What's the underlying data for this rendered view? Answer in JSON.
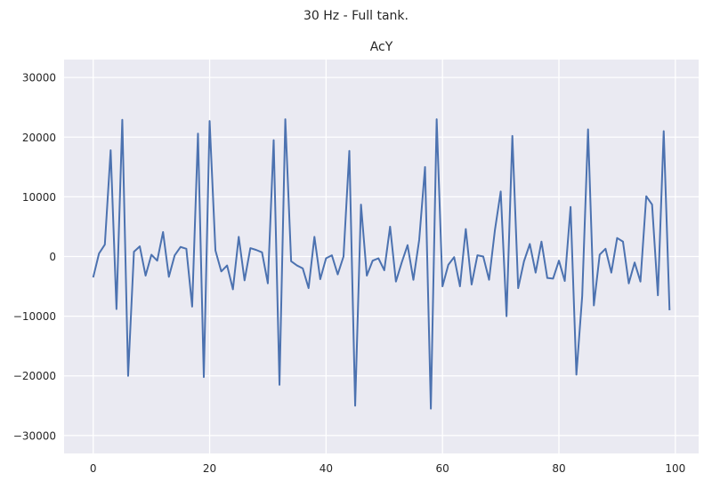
{
  "figure": {
    "suptitle": "30 Hz - Full tank."
  },
  "chart_data": {
    "type": "line",
    "title": "AcY",
    "xlabel": "",
    "ylabel": "",
    "xlim": [
      -5,
      104
    ],
    "ylim": [
      -33000,
      33000
    ],
    "xticks": [
      0,
      20,
      40,
      60,
      80,
      100
    ],
    "yticks": [
      -30000,
      -20000,
      -10000,
      0,
      10000,
      20000,
      30000
    ],
    "xtick_labels": [
      "0",
      "20",
      "40",
      "60",
      "80",
      "100"
    ],
    "ytick_labels": [
      "−30000",
      "−20000",
      "−10000",
      "0",
      "10000",
      "20000",
      "30000"
    ],
    "grid": true,
    "colors": {
      "background": "#eaeaf2",
      "grid": "#ffffff",
      "line": "#4c72b0"
    },
    "series": [
      {
        "name": "AcY",
        "x": [
          0,
          1,
          2,
          3,
          4,
          5,
          6,
          7,
          8,
          9,
          10,
          11,
          12,
          13,
          14,
          15,
          16,
          17,
          18,
          19,
          20,
          21,
          22,
          23,
          24,
          25,
          26,
          27,
          28,
          29,
          30,
          31,
          32,
          33,
          34,
          35,
          36,
          37,
          38,
          39,
          40,
          41,
          42,
          43,
          44,
          45,
          46,
          47,
          48,
          49,
          50,
          51,
          52,
          53,
          54,
          55,
          56,
          57,
          58,
          59,
          60,
          61,
          62,
          63,
          64,
          65,
          66,
          67,
          68,
          69,
          70,
          71,
          72,
          73,
          74,
          75,
          76,
          77,
          78,
          79,
          80,
          81,
          82,
          83,
          84,
          85,
          86,
          87,
          88,
          89,
          90,
          91,
          92,
          93,
          94,
          95,
          96,
          97,
          98,
          99
        ],
        "values": [
          -3500,
          500,
          2000,
          17800,
          -8800,
          22900,
          -20000,
          800,
          1700,
          -3200,
          300,
          -700,
          4100,
          -3400,
          200,
          1600,
          1300,
          -8400,
          20600,
          -20200,
          22700,
          1000,
          -2500,
          -1500,
          -5500,
          3300,
          -4000,
          1400,
          1100,
          700,
          -4500,
          19500,
          -21500,
          23000,
          -800,
          -1500,
          -2000,
          -5300,
          3300,
          -3800,
          -300,
          200,
          -3000,
          0,
          17700,
          -25000,
          8700,
          -3200,
          -700,
          -300,
          -2300,
          5000,
          -4200,
          -1000,
          1900,
          -3900,
          2800,
          15000,
          -25500,
          23000,
          -5000,
          -1400,
          -100,
          -5000,
          4600,
          -4700,
          200,
          0,
          -3900,
          4400,
          10900,
          -10000,
          20200,
          -5300,
          -800,
          2100,
          -2700,
          2500,
          -3600,
          -3700,
          -700,
          -4100,
          8300,
          -19800,
          -6600,
          21300,
          -8200,
          300,
          1300,
          -2700,
          3100,
          2500,
          -4500,
          -1000,
          -4200,
          10100,
          8700,
          -6500,
          21000,
          -9000
        ]
      }
    ]
  }
}
